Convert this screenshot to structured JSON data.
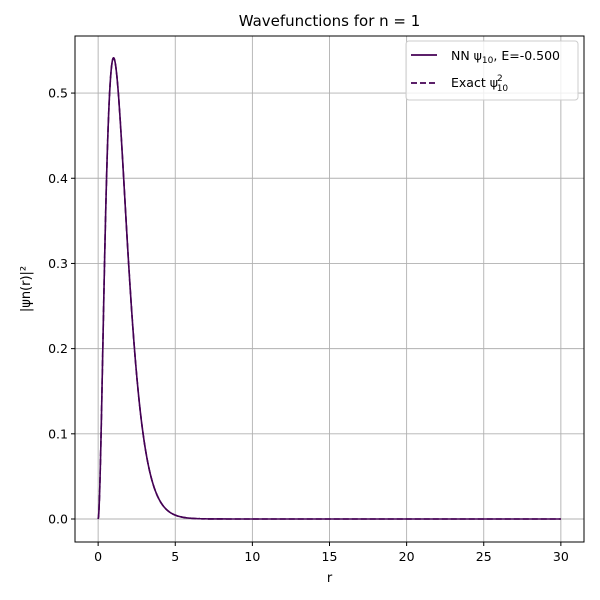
{
  "chart_data": {
    "type": "line",
    "title": "Wavefunctions for n = 1",
    "xlabel": "r",
    "ylabel": "|ψn(r)|²",
    "xlim": [
      -1.5,
      31.5
    ],
    "ylim": [
      -0.027,
      0.567
    ],
    "xticks": [
      0,
      5,
      10,
      15,
      20,
      25,
      30
    ],
    "xtick_labels": [
      "0",
      "5",
      "10",
      "15",
      "20",
      "25",
      "30"
    ],
    "yticks": [
      0.0,
      0.1,
      0.2,
      0.3,
      0.4,
      0.5
    ],
    "ytick_labels": [
      "0.0",
      "0.1",
      "0.2",
      "0.3",
      "0.4",
      "0.5"
    ],
    "grid": true,
    "legend_position": "top-right",
    "series": [
      {
        "name": "NN ψ10, E=-0.500",
        "legend_main": "NN ψ",
        "legend_sub": "10",
        "legend_suffix": ", E=-0.500",
        "color": "#440154",
        "style": "solid",
        "formula": "4 r^2 exp(-2r)",
        "x_range": [
          0,
          30
        ]
      },
      {
        "name": "Exact ψ10²",
        "legend_main": "Exact ψ",
        "legend_sub": "10",
        "legend_sup": "2",
        "color": "#440154",
        "style": "dashed",
        "formula": "4 r^2 exp(-2r)",
        "x_range": [
          0,
          30
        ]
      }
    ]
  }
}
